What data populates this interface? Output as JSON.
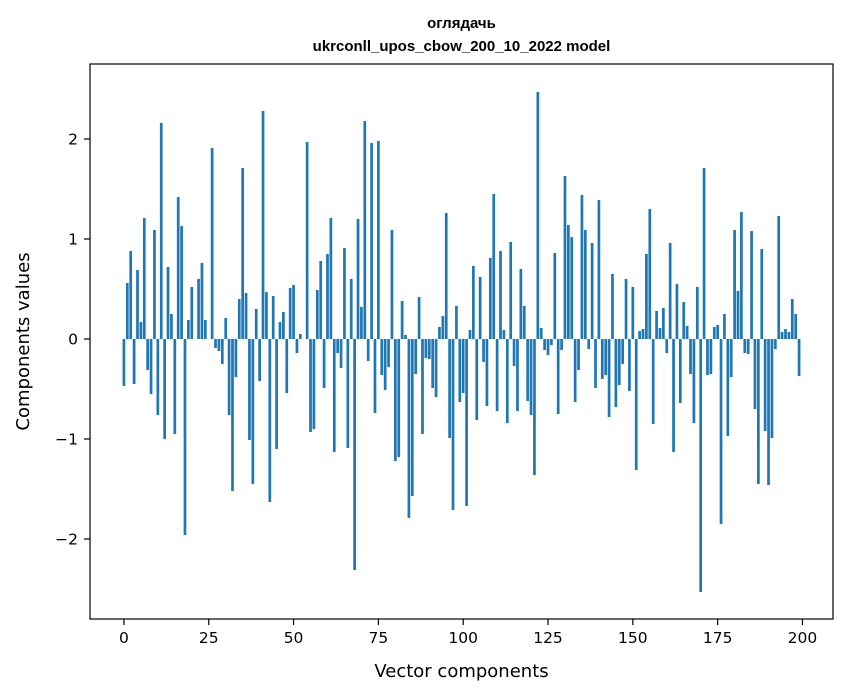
{
  "chart_data": {
    "type": "bar",
    "title_line1": "оглядачь",
    "title_line2": "ukrconll_upos_cbow_200_10_2022 model",
    "xlabel": "Vector components",
    "ylabel": "Components values",
    "xlim": [
      -10,
      209
    ],
    "ylim": [
      -2.8,
      2.75
    ],
    "xticks": [
      0,
      25,
      50,
      75,
      100,
      125,
      150,
      175,
      200
    ],
    "xtick_labels": [
      "0",
      "25",
      "50",
      "75",
      "100",
      "125",
      "150",
      "175",
      "200"
    ],
    "yticks": [
      -2,
      -1,
      0,
      1,
      2
    ],
    "ytick_labels": [
      "−2",
      "−1",
      "0",
      "1",
      "2"
    ],
    "bar_color": "#1f77b4",
    "grid": false,
    "values": [
      -0.47,
      0.56,
      0.88,
      -0.45,
      0.69,
      0.17,
      1.21,
      -0.31,
      -0.55,
      1.09,
      -0.76,
      2.16,
      -1.0,
      0.72,
      0.25,
      -0.95,
      1.42,
      1.13,
      -1.96,
      0.19,
      0.52,
      0.0,
      0.6,
      0.76,
      0.19,
      0.0,
      1.91,
      -0.09,
      -0.12,
      -0.25,
      0.21,
      -0.76,
      -1.52,
      -0.38,
      0.4,
      1.71,
      0.46,
      -1.01,
      -1.45,
      0.3,
      -0.42,
      2.28,
      0.47,
      -1.63,
      0.43,
      -1.1,
      0.17,
      0.27,
      -0.54,
      0.51,
      0.54,
      -0.14,
      0.05,
      0.0,
      1.97,
      -0.93,
      -0.9,
      0.49,
      0.78,
      -0.49,
      0.85,
      1.21,
      -1.13,
      -0.14,
      -0.29,
      0.91,
      -1.09,
      0.6,
      -2.31,
      1.2,
      0.32,
      2.18,
      -0.22,
      1.96,
      -0.74,
      1.98,
      -0.36,
      -0.51,
      -0.28,
      1.09,
      -1.22,
      -1.18,
      0.38,
      0.04,
      -1.79,
      -1.57,
      -0.35,
      0.42,
      -0.95,
      -0.19,
      -0.2,
      -0.49,
      -0.58,
      0.12,
      0.23,
      1.26,
      -0.99,
      -1.71,
      0.33,
      -0.63,
      -0.54,
      -1.67,
      0.09,
      0.73,
      -0.81,
      0.62,
      -0.23,
      -0.67,
      0.81,
      1.45,
      -0.72,
      0.88,
      0.09,
      -0.84,
      0.97,
      -0.27,
      -0.72,
      0.7,
      0.33,
      -0.62,
      -0.76,
      -1.36,
      2.47,
      0.11,
      -0.11,
      -0.16,
      -0.06,
      0.86,
      -0.75,
      -0.11,
      1.63,
      1.14,
      1.02,
      -0.63,
      -0.31,
      1.44,
      1.09,
      -0.1,
      0.96,
      -0.49,
      1.39,
      -0.4,
      -0.36,
      -0.78,
      0.65,
      -0.68,
      -0.46,
      -0.25,
      0.6,
      -0.52,
      0.52,
      -1.31,
      0.08,
      0.1,
      0.85,
      1.3,
      -0.85,
      0.28,
      0.11,
      0.31,
      -0.14,
      0.96,
      -1.13,
      0.55,
      -0.64,
      0.37,
      0.13,
      -0.35,
      -0.84,
      0.52,
      -2.53,
      1.71,
      -0.36,
      -0.35,
      0.12,
      0.14,
      -1.85,
      0.25,
      -0.97,
      -0.38,
      1.09,
      0.48,
      1.27,
      -0.14,
      -0.15,
      1.08,
      -0.7,
      -1.45,
      0.9,
      -0.92,
      -1.46,
      -0.99,
      -0.1,
      1.23,
      0.07,
      0.1,
      0.07,
      0.4,
      0.25,
      -0.37
    ]
  }
}
